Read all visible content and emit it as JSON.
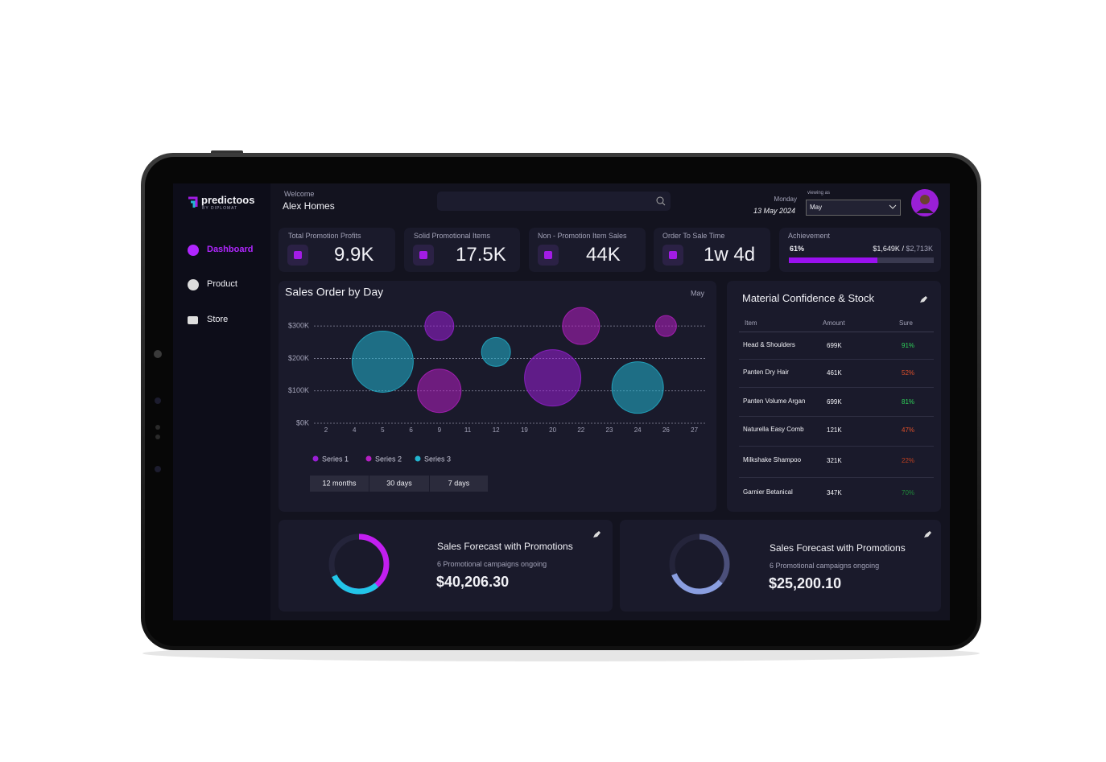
{
  "brand": {
    "name": "predictoos",
    "tagline": "BY DIPLOMAT"
  },
  "header": {
    "welcome": "Welcome",
    "user": "Alex Homes",
    "weekday": "Monday",
    "date": "13 May 2024",
    "viewing_label": "viewing as",
    "viewing_value": "May"
  },
  "nav": [
    "Dashboard",
    "Product",
    "Store"
  ],
  "kpis": [
    {
      "label": "Total Promotion Profits",
      "value": "9.9K"
    },
    {
      "label": "Solid Promotional Items",
      "value": "17.5K"
    },
    {
      "label": "Non - Promotion Item Sales",
      "value": "44K"
    },
    {
      "label": "Order To Sale Time",
      "value": "1w 4d"
    }
  ],
  "achievement": {
    "title": "Achievement",
    "percent": {
      "value": 61,
      "label": "61%"
    },
    "amount": "$1,649K",
    "separator": "/",
    "target": "$2,713K"
  },
  "chart_data": {
    "type": "bubble",
    "title": "Sales Order by Day",
    "period": "May",
    "categories": [
      2,
      4,
      5,
      6,
      9,
      11,
      12,
      19,
      20,
      22,
      23,
      24,
      26,
      27
    ],
    "ylim": [
      0,
      350
    ],
    "yticks": [
      {
        "value": 0,
        "label": "$0K"
      },
      {
        "value": 100,
        "label": "$100K"
      },
      {
        "value": 200,
        "label": "$200K"
      },
      {
        "value": 300,
        "label": "$300K"
      }
    ],
    "grid": true,
    "series": [
      {
        "name": "Series 1",
        "color": "#9a1fd6",
        "x": [
          9,
          20
        ],
        "values": [
          300,
          140
        ],
        "sizes": [
          18,
          35
        ]
      },
      {
        "name": "Series 2",
        "color": "#b51fc2",
        "x": [
          9,
          22,
          26
        ],
        "values": [
          100,
          300,
          300
        ],
        "sizes": [
          27,
          23,
          13
        ]
      },
      {
        "name": "Series 3",
        "color": "#22b5d0",
        "x": [
          5,
          12,
          24
        ],
        "values": [
          190,
          220,
          110
        ],
        "sizes": [
          38,
          18,
          32
        ]
      }
    ],
    "ranges": [
      "12 months",
      "30 days",
      "7 days"
    ]
  },
  "table": {
    "title": "Material Confidence & Stock",
    "columns": [
      "Item",
      "Amount",
      "Sure"
    ],
    "rows": [
      [
        "Head & Shoulders",
        "699K",
        "91%"
      ],
      [
        "Panten Dry Hair",
        "461K",
        "52%"
      ],
      [
        "Panten Volume Argan",
        "699K",
        "81%"
      ],
      [
        "Naturella Easy Comb",
        "121K",
        "47%"
      ],
      [
        "Milkshake Shampoo",
        "321K",
        "22%"
      ],
      [
        "Garnier Betanical",
        "347K",
        "70%"
      ]
    ],
    "sure_colors": [
      "#2fd45a",
      "#e0502a",
      "#2fd45a",
      "#e0502a",
      "#c2401f",
      "#1f8a3a"
    ]
  },
  "forecasts": [
    {
      "title": "Sales Forecast with Promotions",
      "subtitle": "6 Promotional campaigns ongoing",
      "amount": "$40,206.30"
    },
    {
      "title": "Sales Forecast with Promotions",
      "subtitle": "6 Promotional campaigns ongoing",
      "amount": "$25,200.10"
    }
  ]
}
